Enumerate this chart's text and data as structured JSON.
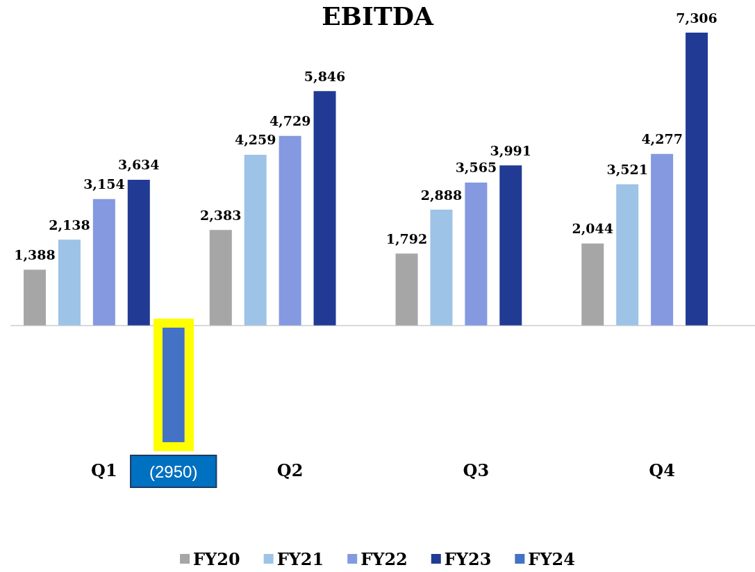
{
  "chart_data": {
    "type": "bar",
    "title": "EBITDA",
    "categories": [
      "Q1",
      "Q2",
      "Q3",
      "Q4"
    ],
    "series": [
      {
        "name": "FY20",
        "color": "#a6a6a6",
        "values": [
          1388,
          2383,
          1792,
          2044
        ],
        "value_labels": [
          "1,388",
          "2,383",
          "1,792",
          "2,044"
        ]
      },
      {
        "name": "FY21",
        "color": "#9dc3e6",
        "values": [
          2138,
          4259,
          2888,
          3521
        ],
        "value_labels": [
          "2,138",
          "4,259",
          "2,888",
          "3,521"
        ]
      },
      {
        "name": "FY22",
        "color": "#8499e0",
        "values": [
          3154,
          4729,
          3565,
          4277
        ],
        "value_labels": [
          "3,154",
          "4,729",
          "3,565",
          "4,277"
        ]
      },
      {
        "name": "FY23",
        "color": "#213b94",
        "values": [
          3634,
          5846,
          3991,
          7306
        ],
        "value_labels": [
          "3,634",
          "5,846",
          "3,991",
          "7,306"
        ]
      },
      {
        "name": "FY24",
        "color": "#4472c4",
        "values": [
          -2950,
          null,
          null,
          null
        ],
        "value_labels": [
          "(2950)",
          null,
          null,
          null
        ]
      }
    ],
    "legend": "bottom",
    "tick_labels": "x"
  }
}
